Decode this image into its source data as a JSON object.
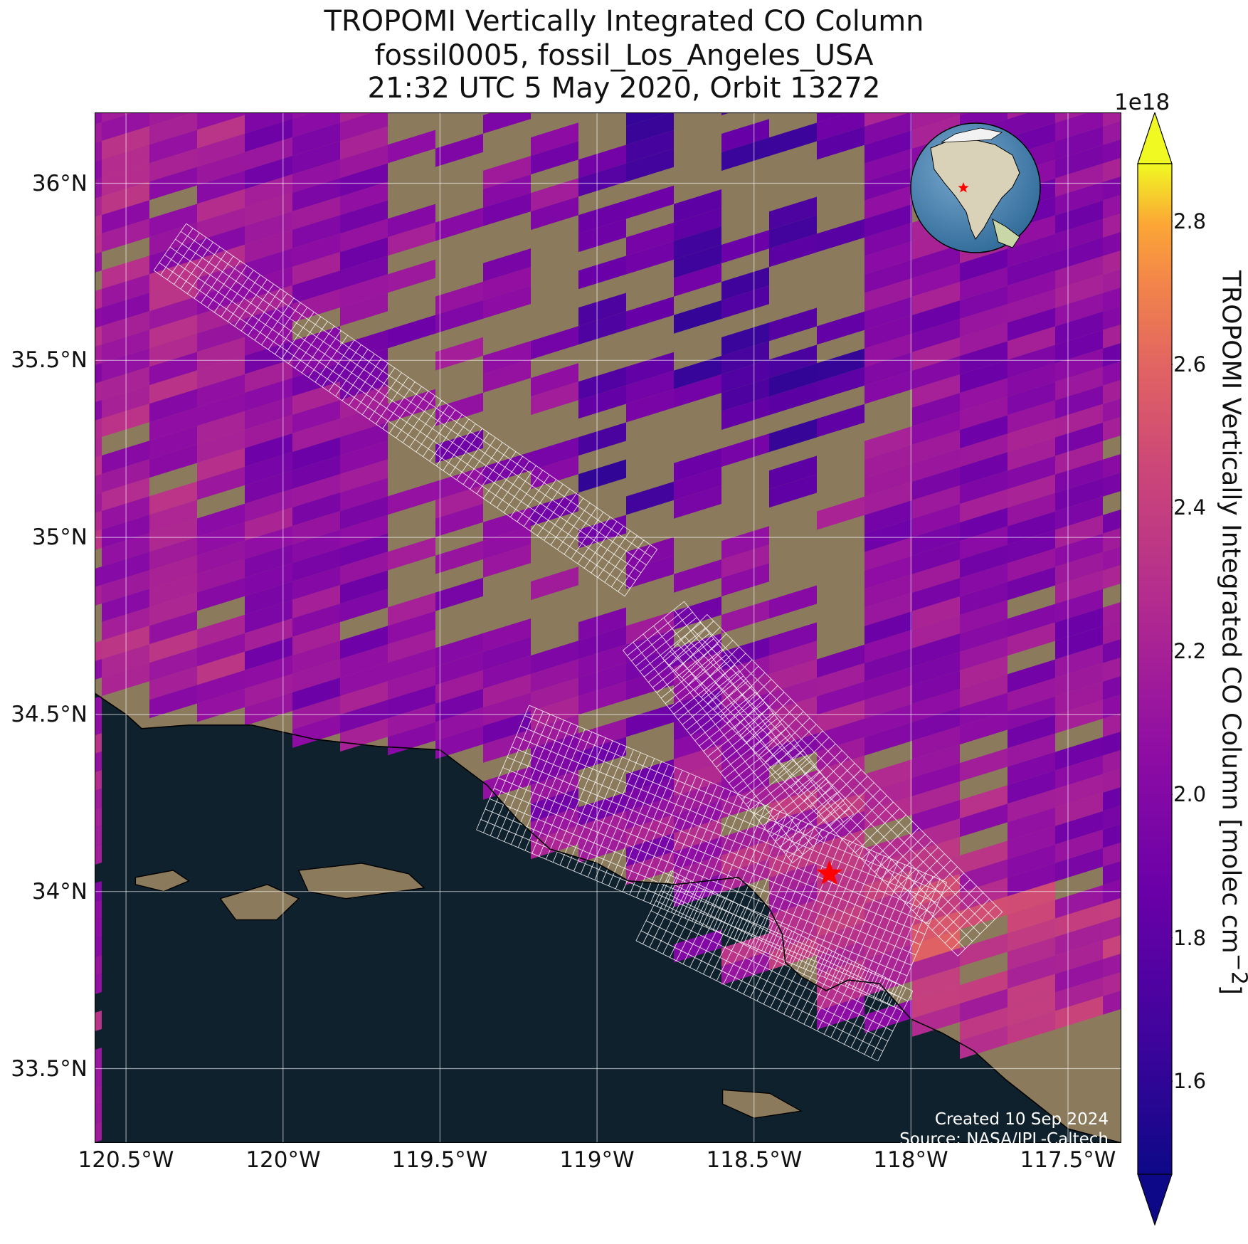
{
  "title": {
    "line1": "TROPOMI Vertically Integrated CO Column",
    "line2": "fossil0005, fossil_Los_Angeles_USA",
    "line3": "21:32 UTC 5 May 2020, Orbit 13272"
  },
  "map": {
    "lon_range": [
      -120.6,
      -117.33
    ],
    "lat_range": [
      33.29,
      36.2
    ],
    "lat_ticks": [
      {
        "value": 36.0,
        "label": "36°N"
      },
      {
        "value": 35.5,
        "label": "35.5°N"
      },
      {
        "value": 35.0,
        "label": "35°N"
      },
      {
        "value": 34.5,
        "label": "34.5°N"
      },
      {
        "value": 34.0,
        "label": "34°N"
      },
      {
        "value": 33.5,
        "label": "33.5°N"
      }
    ],
    "lon_ticks": [
      {
        "value": -120.5,
        "label": "120.5°W"
      },
      {
        "value": -120.0,
        "label": "120°W"
      },
      {
        "value": -119.5,
        "label": "119.5°W"
      },
      {
        "value": -119.0,
        "label": "119°W"
      },
      {
        "value": -118.5,
        "label": "118.5°W"
      },
      {
        "value": -118.0,
        "label": "118°W"
      },
      {
        "value": -117.5,
        "label": "117.5°W"
      }
    ],
    "target_marker": {
      "name": "red-star",
      "lon": -118.26,
      "lat": 34.05,
      "color": "#ff0000"
    },
    "ocean_color": "#10212e",
    "land_color": "#8b7b5c",
    "grid": true,
    "inset_globe": {
      "center": "North America",
      "marker": "red-star",
      "position": "top-right"
    }
  },
  "colorbar": {
    "label": "TROPOMI Vertically Integrated CO Column [molec cm",
    "label_sup": "−2",
    "label_end": "]",
    "exponent": "1e18",
    "range": [
      1.47,
      2.88
    ],
    "ticks": [
      {
        "value": 1.6,
        "label": "1.6"
      },
      {
        "value": 1.8,
        "label": "1.8"
      },
      {
        "value": 2.0,
        "label": "2.0"
      },
      {
        "value": 2.2,
        "label": "2.2"
      },
      {
        "value": 2.4,
        "label": "2.4"
      },
      {
        "value": 2.6,
        "label": "2.6"
      },
      {
        "value": 2.8,
        "label": "2.8"
      }
    ],
    "colormap": "plasma",
    "extend": "both"
  },
  "credits": {
    "created": "Created 10 Sep 2024",
    "source": "Source: NASA/JPL-Caltech"
  }
}
